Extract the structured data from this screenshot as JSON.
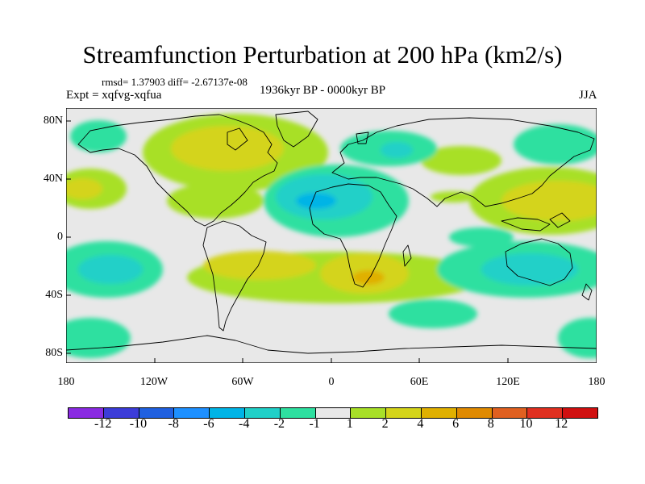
{
  "title": "Streamfunction Perturbation at 200 hPa (km2/s)",
  "stats": "rmsd= 1.37903 diff= -2.67137e-08",
  "expt": "Expt = xqfvg-xqfua",
  "period": "1936kyr BP - 0000kyr BP",
  "season": "JJA",
  "lat_labels": [
    "80N",
    "40N",
    "0",
    "40S",
    "80S"
  ],
  "lon_labels": [
    "180",
    "120W",
    "60W",
    "0",
    "60E",
    "120E",
    "180"
  ],
  "colorbar": {
    "labels": [
      "-12",
      "-10",
      "-8",
      "-6",
      "-4",
      "-2",
      "-1",
      "1",
      "2",
      "4",
      "6",
      "8",
      "10",
      "12"
    ],
    "colors": [
      "#8a2be2",
      "#3c3cd8",
      "#2060e0",
      "#1e90ff",
      "#00b4e6",
      "#20d0c8",
      "#2ee0a0",
      "#e8e8e8",
      "#a8e028",
      "#d4d41a",
      "#e0b000",
      "#e08a00",
      "#e06020",
      "#e03020",
      "#d01010"
    ]
  },
  "colors": {
    "ocean_neutral": "#e8e8e8",
    "coast": "#000000"
  }
}
